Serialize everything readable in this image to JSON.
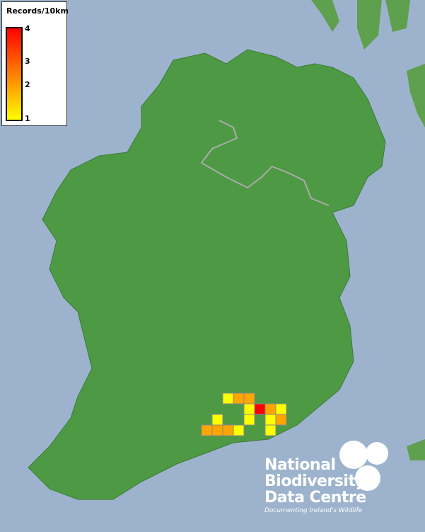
{
  "legend": {
    "title": "Records/10km",
    "ticks": [
      "4",
      "3",
      "2",
      "1"
    ],
    "colors": {
      "low": "#ffff00",
      "mid": "#ffa500",
      "high": "#ff0000"
    }
  },
  "records": {
    "cell_values": [
      1,
      2,
      2,
      1,
      4,
      2,
      1,
      1,
      1,
      1,
      2,
      2,
      2,
      2,
      1,
      1
    ],
    "colors": {
      "1": "#ffff00",
      "2": "#ffa500",
      "3": "#ff6600",
      "4": "#ff0000"
    }
  },
  "logo": {
    "line1": "National",
    "line2": "Biodiversity",
    "line3": "Data Centre",
    "tagline": "Documenting Ireland's Wildlife"
  }
}
